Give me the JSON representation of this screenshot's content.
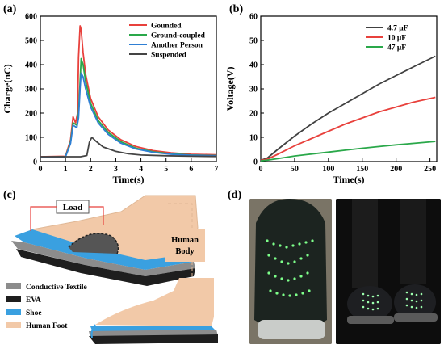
{
  "panels": {
    "a": "(a)",
    "b": "(b)",
    "c": "(c)",
    "d": "(d)"
  },
  "chart_data": [
    {
      "type": "line",
      "panel": "(a)",
      "xlabel": "Time(s)",
      "ylabel": "Charge(nC)",
      "xlim": [
        0,
        7
      ],
      "ylim": [
        0,
        600
      ],
      "xticks": [
        0,
        1,
        2,
        3,
        4,
        5,
        6,
        7
      ],
      "yticks": [
        0,
        100,
        200,
        300,
        400,
        500,
        600
      ],
      "legend_position": "top-right",
      "series": [
        {
          "name": "Gounded",
          "color": "#e8413c",
          "x": [
            0,
            1.0,
            1.2,
            1.3,
            1.4,
            1.48,
            1.52,
            1.58,
            1.62,
            1.7,
            1.8,
            2.0,
            2.3,
            2.7,
            3.2,
            3.8,
            4.5,
            5.2,
            6.0,
            7.0
          ],
          "y": [
            20,
            22,
            90,
            185,
            160,
            200,
            430,
            560,
            545,
            450,
            360,
            260,
            185,
            130,
            90,
            62,
            45,
            36,
            30,
            28
          ]
        },
        {
          "name": "Ground-coupled",
          "color": "#2aa84a",
          "x": [
            0,
            1.0,
            1.2,
            1.3,
            1.45,
            1.52,
            1.58,
            1.62,
            1.7,
            1.8,
            2.0,
            2.3,
            2.7,
            3.2,
            3.8,
            4.5,
            5.2,
            6.0,
            7.0
          ],
          "y": [
            18,
            20,
            80,
            160,
            150,
            200,
            330,
            425,
            400,
            330,
            240,
            170,
            120,
            82,
            55,
            40,
            32,
            27,
            25
          ]
        },
        {
          "name": "Another Person",
          "color": "#2f7fd4",
          "x": [
            0,
            1.0,
            1.2,
            1.3,
            1.45,
            1.52,
            1.58,
            1.62,
            1.7,
            1.8,
            2.0,
            2.3,
            2.7,
            3.2,
            3.8,
            4.5,
            5.2,
            6.0,
            7.0
          ],
          "y": [
            17,
            19,
            75,
            150,
            140,
            180,
            300,
            365,
            350,
            300,
            225,
            160,
            112,
            76,
            52,
            38,
            30,
            26,
            24
          ]
        },
        {
          "name": "Suspended",
          "color": "#444444",
          "x": [
            0,
            1.6,
            1.85,
            1.95,
            2.05,
            2.2,
            2.5,
            3.0,
            3.5,
            4.0,
            5.0,
            6.0,
            7.0
          ],
          "y": [
            20,
            20,
            25,
            80,
            100,
            85,
            60,
            42,
            32,
            27,
            24,
            22,
            21
          ]
        }
      ]
    },
    {
      "type": "line",
      "panel": "(b)",
      "xlabel": "Time(s)",
      "ylabel": "Voltage(V)",
      "xlim": [
        0,
        260
      ],
      "ylim": [
        0,
        60
      ],
      "xticks": [
        0,
        50,
        100,
        150,
        200,
        250
      ],
      "yticks": [
        0,
        10,
        20,
        30,
        40,
        50,
        60
      ],
      "legend_position": "top-left",
      "series": [
        {
          "name": "4.7 μF",
          "color": "#404040",
          "x": [
            0,
            10,
            25,
            50,
            75,
            100,
            125,
            150,
            175,
            200,
            225,
            258
          ],
          "y": [
            0.5,
            1.5,
            5,
            10.5,
            15.5,
            20,
            24,
            28,
            32,
            35.5,
            39,
            43.5
          ]
        },
        {
          "name": "10 μF",
          "color": "#e8413c",
          "x": [
            0,
            10,
            25,
            50,
            75,
            100,
            125,
            150,
            175,
            200,
            225,
            258
          ],
          "y": [
            0.5,
            1,
            3,
            6.5,
            9.5,
            12.5,
            15.5,
            18,
            20.5,
            22.5,
            24.5,
            26.5
          ]
        },
        {
          "name": "47 μF",
          "color": "#2aa84a",
          "x": [
            0,
            10,
            25,
            50,
            75,
            100,
            125,
            150,
            175,
            200,
            225,
            258
          ],
          "y": [
            0.3,
            0.6,
            1.2,
            2.3,
            3.1,
            3.9,
            4.7,
            5.5,
            6.2,
            6.9,
            7.5,
            8.3
          ]
        }
      ]
    }
  ],
  "diagram": {
    "load_label": "Load",
    "body_label": "Human Body",
    "legend": [
      {
        "label": "Conductive Textile",
        "color": "#8c8c8c"
      },
      {
        "label": "EVA",
        "color": "#1e1e1e"
      },
      {
        "label": "Shoe",
        "color": "#3aa0e0"
      },
      {
        "label": "Human Foot",
        "color": "#f2c9a8"
      }
    ]
  }
}
